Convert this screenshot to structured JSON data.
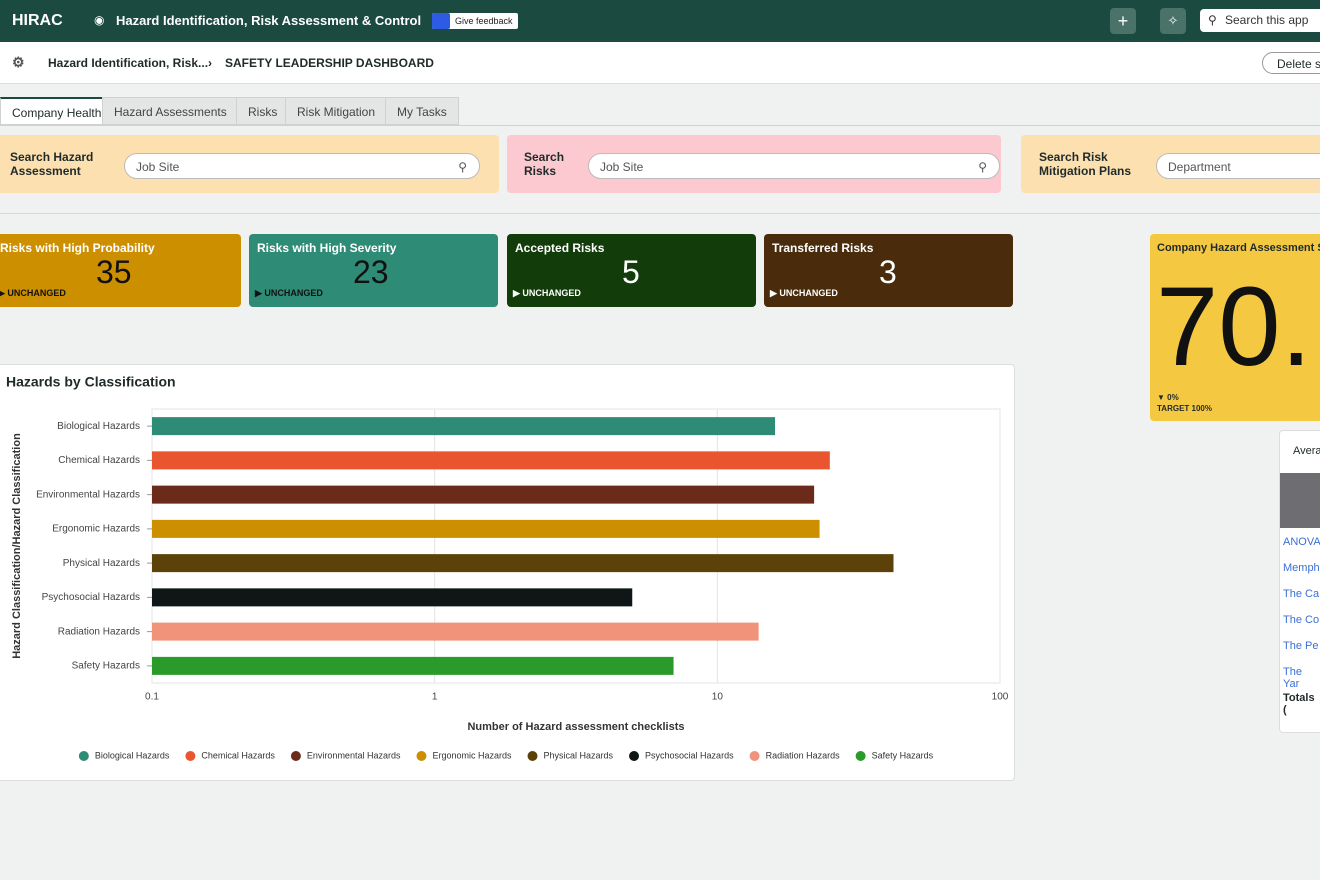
{
  "header": {
    "app_name": "HIRAC",
    "title": "Hazard Identification, Risk Assessment & Control",
    "feedback": "Give feedback",
    "search_placeholder": "Search this app"
  },
  "breadcrumb": {
    "parent": "Hazard Identification, Risk...",
    "current": "SAFETY LEADERSHIP DASHBOARD",
    "action": "Delete sa"
  },
  "tabs": [
    "Company Health",
    "Hazard Assessments",
    "Risks",
    "Risk Mitigation",
    "My Tasks"
  ],
  "search_panels": [
    {
      "label": "Search Hazard Assessment",
      "placeholder": "Job Site"
    },
    {
      "label": "Search Risks",
      "placeholder": "Job Site"
    },
    {
      "label": "Search Risk Mitigation Plans",
      "placeholder": "Department"
    }
  ],
  "kpis": [
    {
      "title": "Risks with High Probability",
      "value": 35,
      "status": "UNCHANGED"
    },
    {
      "title": "Risks with High Severity",
      "value": 23,
      "status": "UNCHANGED"
    },
    {
      "title": "Accepted Risks",
      "value": 5,
      "status": "UNCHANGED"
    },
    {
      "title": "Transferred Risks",
      "value": 3,
      "status": "UNCHANGED"
    }
  ],
  "score_card": {
    "title": "Company Hazard Assessment S",
    "value": "70.",
    "change": "0%",
    "target": "TARGET 100%"
  },
  "table": {
    "title": "Avera",
    "rows": [
      "ANOVA",
      "Memph",
      "The Ca",
      "The Co",
      "The Pe",
      "The Yar"
    ],
    "totals": "Totals ("
  },
  "chart_data": {
    "type": "bar",
    "orientation": "horizontal",
    "title": "Hazards by Classification",
    "x_label": "Number of Hazard assessment checklists",
    "y_label": "Hazard Classification/Hazard Classification",
    "categories": [
      "Biological Hazards",
      "Chemical Hazards",
      "Environmental Hazards",
      "Ergonomic Hazards",
      "Physical Hazards",
      "Psychosocial Hazards",
      "Radiation Hazards",
      "Safety Hazards"
    ],
    "values": [
      16,
      25,
      22,
      23,
      42,
      5,
      14,
      7
    ],
    "colors": [
      "#2e8b76",
      "#e8552e",
      "#6b2a1a",
      "#cc8f00",
      "#5c4209",
      "#0e1616",
      "#f0937a",
      "#2a9a2a"
    ],
    "xscale": "log",
    "xlim": [
      0.1,
      100
    ],
    "xticks": [
      0.1,
      1,
      10,
      100
    ],
    "grid": true,
    "legend": "bottom"
  }
}
